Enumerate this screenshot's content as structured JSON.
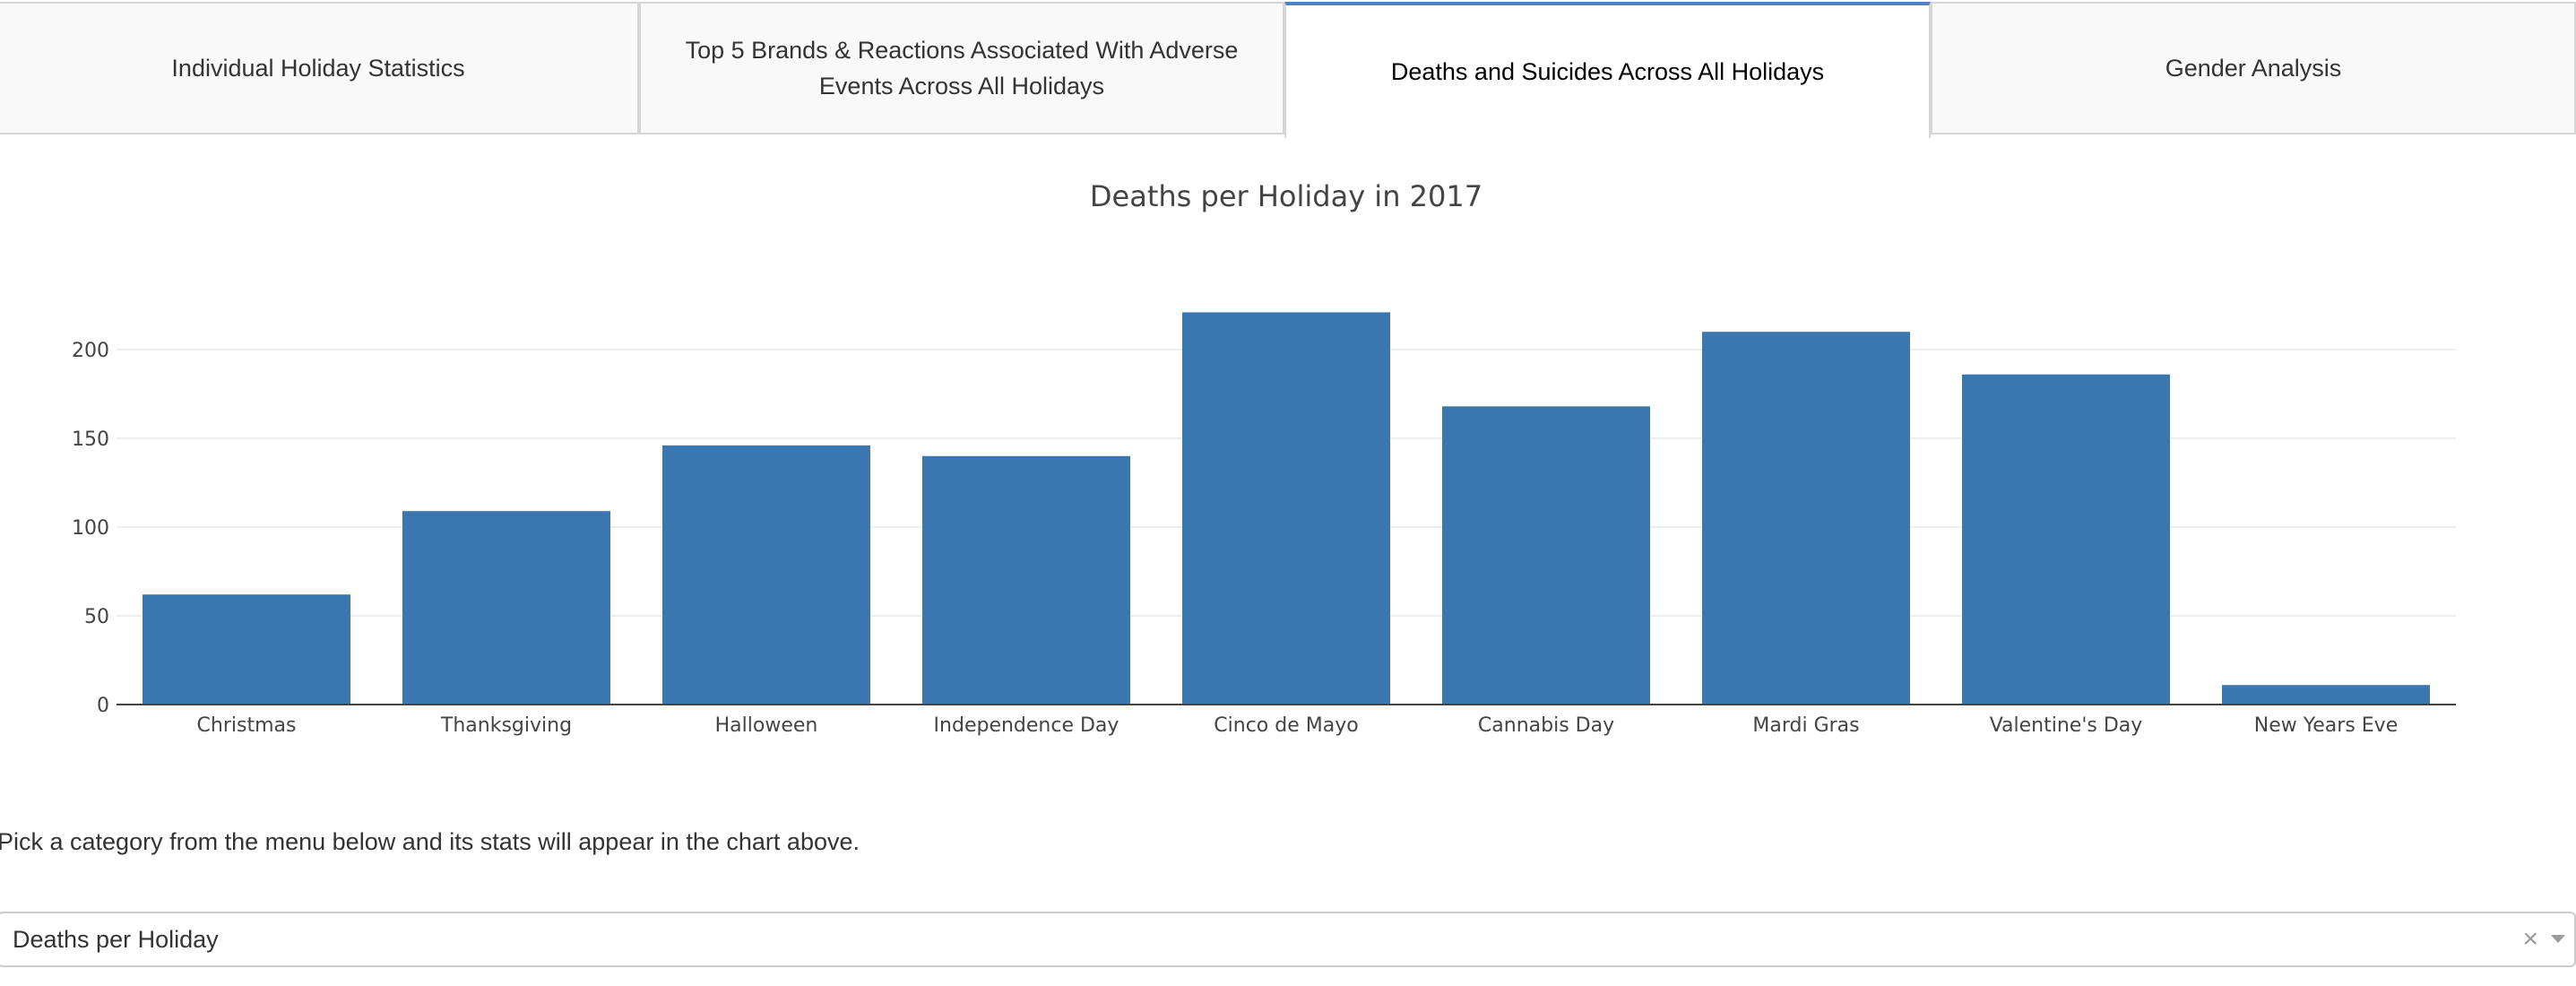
{
  "tabs": [
    {
      "label": "Individual Holiday Statistics",
      "active": false
    },
    {
      "label": "Top 5 Brands & Reactions Associated With Adverse Events Across All Holidays",
      "active": false
    },
    {
      "label": "Deaths and Suicides Across All Holidays",
      "active": true
    },
    {
      "label": "Gender Analysis",
      "active": false
    }
  ],
  "caption": "Pick a category from the menu below and its stats will appear in the chart above.",
  "dropdown": {
    "selected": "Deaths per Holiday",
    "clear_icon": "close-icon",
    "arrow_icon": "caret-down-icon"
  },
  "colors": {
    "bar": "#3a76af",
    "active_tab_accent": "#4c82c3"
  },
  "chart_data": {
    "type": "bar",
    "title": "Deaths per Holiday in 2017",
    "categories": [
      "Christmas",
      "Thanksgiving",
      "Halloween",
      "Independence Day",
      "Cinco de Mayo",
      "Cannabis Day",
      "Mardi Gras",
      "Valentine's Day",
      "New Years Eve"
    ],
    "values": [
      62,
      109,
      146,
      140,
      221,
      168,
      210,
      186,
      11
    ],
    "yticks": [
      0,
      50,
      100,
      150,
      200
    ],
    "ylim": [
      0,
      221
    ],
    "grid": true,
    "xlabel": "",
    "ylabel": ""
  }
}
